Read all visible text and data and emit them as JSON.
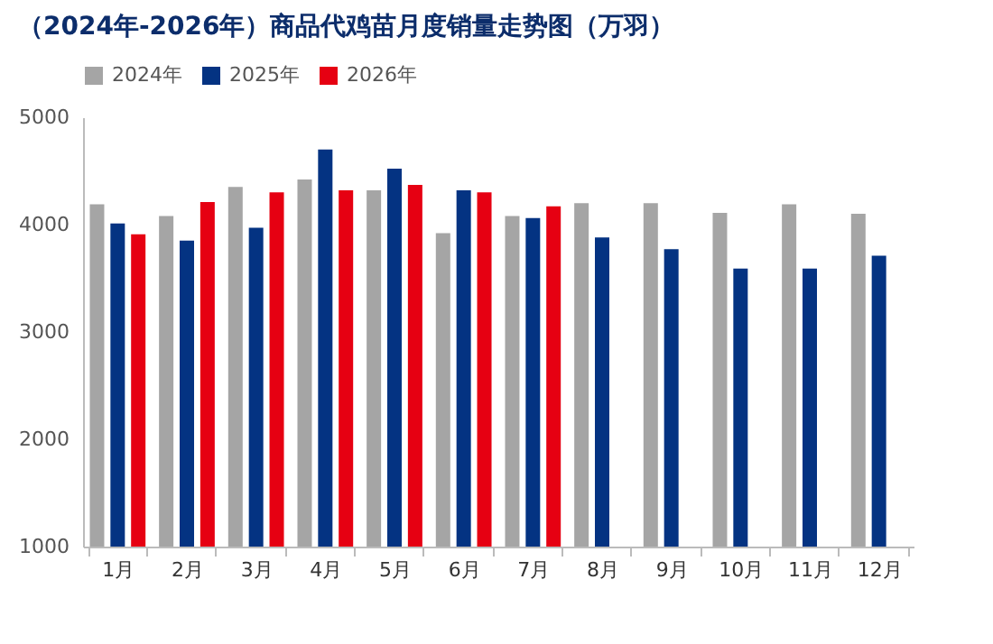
{
  "chart_data": {
    "type": "bar",
    "title": "（2024年-2026年）商品代鸡苗月度销量走势图（万羽）",
    "categories": [
      "1月",
      "2月",
      "3月",
      "4月",
      "5月",
      "6月",
      "7月",
      "8月",
      "9月",
      "10月",
      "11月",
      "12月"
    ],
    "series": [
      {
        "name": "2024年",
        "color": "#a5a5a5",
        "values": [
          4190,
          4080,
          4350,
          4420,
          4320,
          3920,
          4080,
          4200,
          4200,
          4110,
          4190,
          4100
        ]
      },
      {
        "name": "2025年",
        "color": "#043382",
        "values": [
          4010,
          3850,
          3970,
          4700,
          4520,
          4320,
          4060,
          3880,
          3770,
          3590,
          3590,
          3710
        ]
      },
      {
        "name": "2026年",
        "color": "#e60012",
        "values": [
          3910,
          4210,
          4300,
          4320,
          4370,
          4300,
          4170,
          null,
          null,
          null,
          null,
          null
        ]
      }
    ],
    "ylim": [
      1000,
      5000
    ],
    "yticks": [
      1000,
      2000,
      3000,
      4000,
      5000
    ],
    "grid": false,
    "legend": "top"
  }
}
